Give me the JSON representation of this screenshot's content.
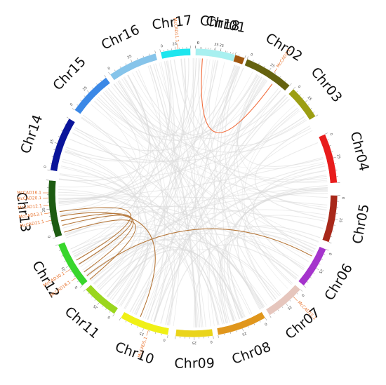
{
  "chromosomes": [
    {
      "name": "Chr01",
      "color": "#a0570f"
    },
    {
      "name": "Chr02",
      "color": "#65620f"
    },
    {
      "name": "Chr03",
      "color": "#9c9e13"
    },
    {
      "name": "Chr04",
      "color": "#e81c1c"
    },
    {
      "name": "Chr05",
      "color": "#a8281a"
    },
    {
      "name": "Chr06",
      "color": "#a534cc"
    },
    {
      "name": "Chr07",
      "color": "#e6c6bd"
    },
    {
      "name": "Chr08",
      "color": "#e0961c"
    },
    {
      "name": "Chr09",
      "color": "#ead41a"
    },
    {
      "name": "Chr10",
      "color": "#f0f016"
    },
    {
      "name": "Chr11",
      "color": "#9ad61e"
    },
    {
      "name": "Chr12",
      "color": "#38d62c"
    },
    {
      "name": "Chr13",
      "color": "#1d5c12"
    },
    {
      "name": "Chr14",
      "color": "#0a149a"
    },
    {
      "name": "Chr15",
      "color": "#3b88e6"
    },
    {
      "name": "Chr16",
      "color": "#86c4ea"
    },
    {
      "name": "Chr17",
      "color": "#1ee6ee"
    },
    {
      "name": "Chr18",
      "color": "#a8f0f0"
    }
  ],
  "tick_values": [
    "0",
    "25"
  ],
  "genes": [
    {
      "label": "McCAD11.1",
      "chr": "Chr18"
    },
    {
      "label": "McCAD2.1",
      "chr": "Chr02"
    },
    {
      "label": "McCAD15.1",
      "chr": "Chr07"
    },
    {
      "label": "McCAD21.1",
      "chr": "Chr13"
    },
    {
      "label": "McCAD13.1",
      "chr": "Chr13"
    },
    {
      "label": "McCAD12.1",
      "chr": "Chr13"
    },
    {
      "label": "McCAD20.1",
      "chr": "Chr13"
    },
    {
      "label": "McCAD16.1",
      "chr": "Chr13"
    },
    {
      "label": "McCAD18.1",
      "chr": "Chr12"
    },
    {
      "label": "McCAD30.1",
      "chr": "Chr12"
    },
    {
      "label": "McCAD5.1",
      "chr": "Chr10"
    }
  ],
  "colors": {
    "background_links": "#d9d9d9",
    "link_orange": "#f26b3a",
    "link_brown": "#b5773a",
    "gene_label": "#e8722c"
  }
}
